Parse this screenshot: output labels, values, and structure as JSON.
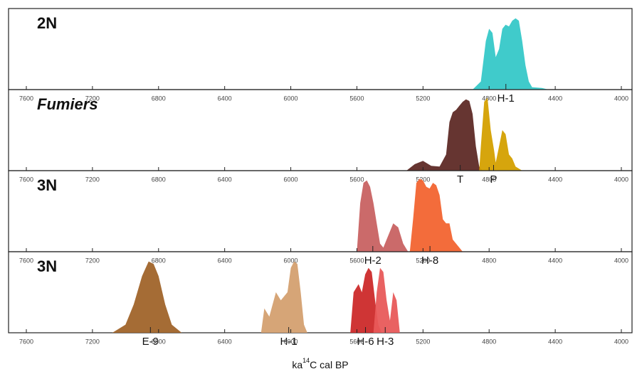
{
  "chart_data": [
    {
      "type": "area",
      "label": "2N",
      "label_italic": false,
      "xlim": [
        7600,
        4000
      ],
      "ylim": [
        0,
        1
      ],
      "xticks": [
        7600,
        7200,
        6800,
        6400,
        6000,
        5600,
        5200,
        4800,
        4400,
        4000
      ],
      "series": [
        {
          "name": "H-1",
          "color": "#36c8c8",
          "x": [
            4900,
            4850,
            4820,
            4800,
            4780,
            4760,
            4740,
            4720,
            4700,
            4680,
            4660,
            4640,
            4620,
            4600,
            4580,
            4560,
            4540,
            4480,
            4440
          ],
          "values": [
            0,
            0.1,
            0.6,
            0.75,
            0.7,
            0.4,
            0.5,
            0.75,
            0.8,
            0.78,
            0.85,
            0.88,
            0.85,
            0.6,
            0.3,
            0.1,
            0.03,
            0.02,
            0
          ]
        }
      ]
    },
    {
      "type": "area",
      "label": "Fumiers",
      "label_italic": true,
      "xlim": [
        7600,
        4000
      ],
      "ylim": [
        0,
        1
      ],
      "xticks": [
        7600,
        7200,
        6800,
        6400,
        6000,
        5600,
        5200,
        4800,
        4400,
        4000
      ],
      "series": [
        {
          "name": "T",
          "color": "#5e2a26",
          "x": [
            5300,
            5250,
            5200,
            5150,
            5100,
            5060,
            5040,
            5020,
            5000,
            4980,
            4960,
            4940,
            4920,
            4900,
            4880,
            4860,
            4840
          ],
          "values": [
            0,
            0.08,
            0.12,
            0.06,
            0.05,
            0.2,
            0.6,
            0.72,
            0.75,
            0.8,
            0.85,
            0.88,
            0.86,
            0.7,
            0.3,
            0.05,
            0
          ]
        },
        {
          "name": "P",
          "color": "#d4a000",
          "x": [
            4860,
            4850,
            4830,
            4810,
            4790,
            4770,
            4760,
            4740,
            4720,
            4700,
            4680,
            4660,
            4640,
            4600
          ],
          "values": [
            0,
            0.3,
            0.85,
            0.9,
            0.5,
            0.25,
            0.1,
            0.3,
            0.5,
            0.45,
            0.2,
            0.15,
            0.05,
            0
          ]
        }
      ]
    },
    {
      "type": "area",
      "label": "3N",
      "label_italic": false,
      "xlim": [
        7600,
        4000
      ],
      "ylim": [
        0,
        1
      ],
      "xticks": [
        7600,
        7200,
        6800,
        6400,
        6000,
        5600,
        5200,
        4800,
        4400,
        4000
      ],
      "series": [
        {
          "name": "H-2",
          "color": "#c86262",
          "x": [
            5600,
            5580,
            5560,
            5540,
            5520,
            5500,
            5480,
            5460,
            5440,
            5420,
            5380,
            5350,
            5320,
            5290
          ],
          "values": [
            0,
            0.6,
            0.85,
            0.88,
            0.8,
            0.6,
            0.35,
            0.1,
            0.05,
            0.15,
            0.35,
            0.3,
            0.1,
            0
          ]
        },
        {
          "name": "H-8",
          "color": "#f26430",
          "x": [
            5280,
            5260,
            5240,
            5220,
            5200,
            5180,
            5160,
            5140,
            5120,
            5100,
            5080,
            5060,
            5040,
            5020,
            4980,
            4960
          ],
          "values": [
            0,
            0.4,
            0.85,
            0.9,
            0.88,
            0.8,
            0.78,
            0.85,
            0.82,
            0.7,
            0.4,
            0.35,
            0.35,
            0.15,
            0.05,
            0
          ]
        }
      ]
    },
    {
      "type": "area",
      "label": "3N",
      "label_italic": false,
      "xlim": [
        7600,
        4000
      ],
      "ylim": [
        0,
        1
      ],
      "xticks": [
        7600,
        7200,
        6800,
        6400,
        6000,
        5600,
        5200,
        4800,
        4400,
        4000
      ],
      "xlabel": {
        "prefix": "ka",
        "superscript": "14",
        "suffix": "C cal BP"
      },
      "series": [
        {
          "name": "E-9",
          "color": "#a0642a",
          "x": [
            7080,
            7000,
            6950,
            6900,
            6860,
            6830,
            6800,
            6760,
            6720,
            6660
          ],
          "values": [
            0,
            0.1,
            0.35,
            0.7,
            0.88,
            0.85,
            0.7,
            0.35,
            0.1,
            0
          ]
        },
        {
          "name": "H-1",
          "color": "#d4a070",
          "x": [
            6180,
            6160,
            6130,
            6090,
            6060,
            6020,
            6000,
            5980,
            5960,
            5940,
            5920,
            5900
          ],
          "values": [
            0,
            0.3,
            0.2,
            0.5,
            0.4,
            0.5,
            0.8,
            0.88,
            0.85,
            0.5,
            0.1,
            0
          ]
        },
        {
          "name": "H-6",
          "color": "#cc2a2a",
          "x": [
            5640,
            5620,
            5590,
            5570,
            5550,
            5530,
            5510,
            5490,
            5470,
            5450
          ],
          "values": [
            0,
            0.5,
            0.6,
            0.5,
            0.72,
            0.8,
            0.75,
            0.4,
            0.1,
            0
          ]
        },
        {
          "name": "H-3",
          "color": "#e85a5a",
          "x": [
            5500,
            5480,
            5460,
            5440,
            5420,
            5400,
            5380,
            5360,
            5340
          ],
          "values": [
            0,
            0.5,
            0.8,
            0.75,
            0.4,
            0.15,
            0.5,
            0.4,
            0
          ]
        }
      ]
    }
  ]
}
